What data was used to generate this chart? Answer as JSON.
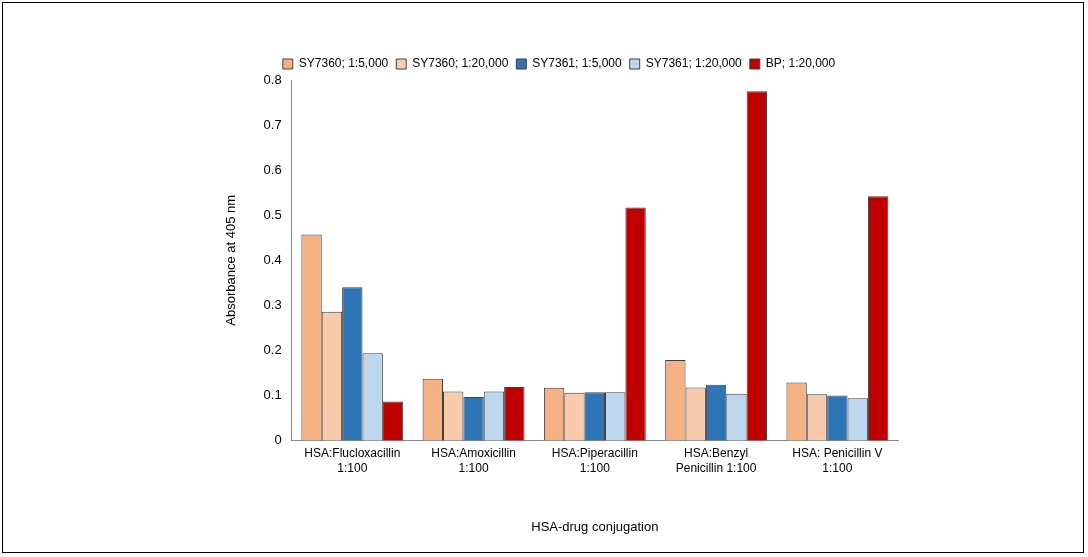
{
  "chart_data": {
    "type": "bar",
    "categories": [
      "HSA:Flucloxacillin\n1:100",
      "HSA:Amoxicillin\n1:100",
      "HSA:Piperacillin\n1:100",
      "HSA:Benzyl\nPenicillin 1:100",
      "HSA: Penicillin V\n1:100"
    ],
    "series": [
      {
        "name": "SY7360; 1:5,000",
        "color": "#f4b183",
        "values": [
          0.457,
          0.137,
          0.117,
          0.179,
          0.129
        ]
      },
      {
        "name": "SY7360; 1:20,000",
        "color": "#f8cbad",
        "values": [
          0.286,
          0.109,
          0.106,
          0.118,
          0.103
        ]
      },
      {
        "name": "SY7361; 1:5,000",
        "color": "#2e75b6",
        "values": [
          0.34,
          0.097,
          0.107,
          0.124,
          0.1
        ]
      },
      {
        "name": "SY7361; 1:20,000",
        "color": "#bdd7ee",
        "values": [
          0.194,
          0.109,
          0.107,
          0.104,
          0.094
        ]
      },
      {
        "name": "BP; 1:20,000",
        "color": "#c00000",
        "values": [
          0.087,
          0.119,
          0.517,
          0.775,
          0.542
        ]
      }
    ],
    "xlabel": "HSA-drug conjugation",
    "ylabel": "Absorbance at 405 nm",
    "ylim": [
      0,
      0.8
    ],
    "yticks": [
      0,
      0.1,
      0.2,
      0.3,
      0.4,
      0.5,
      0.6,
      0.7,
      0.8
    ],
    "grid": false,
    "legend": "top"
  }
}
